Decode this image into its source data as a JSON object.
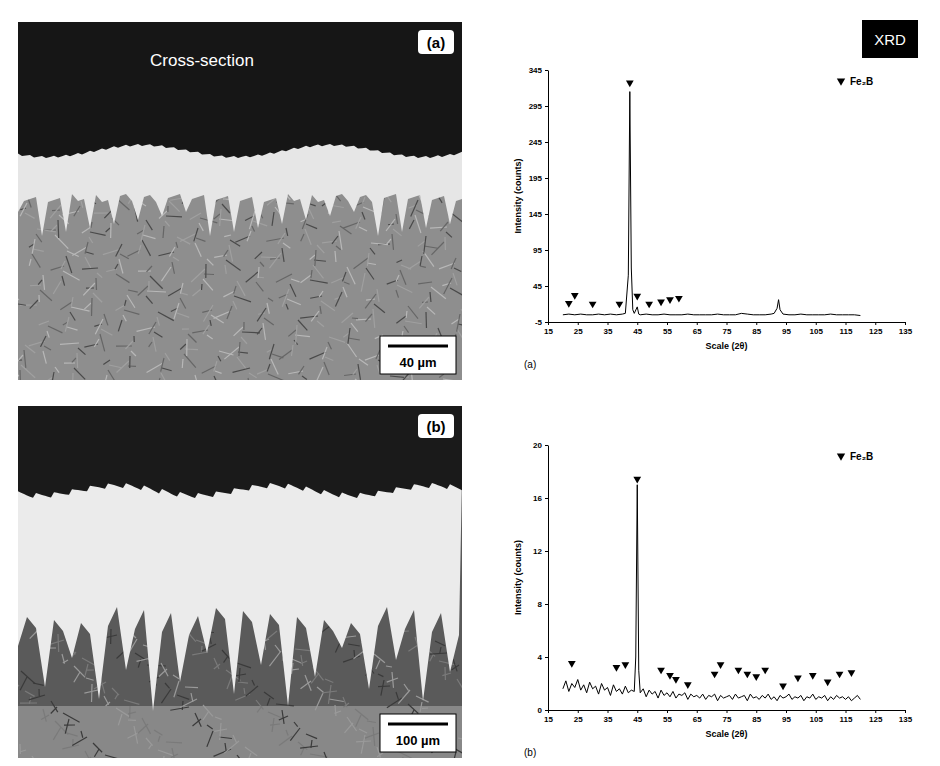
{
  "header": {
    "left_title": "Cross-section",
    "right_title": "XRD"
  },
  "micrographs": [
    {
      "label": "(a)",
      "scale_bar": "40 µm"
    },
    {
      "label": "(b)",
      "scale_bar": "100 µm"
    }
  ],
  "chart_data": [
    {
      "type": "line",
      "panel_label": "(a)",
      "x_label": "Scale (2θ)",
      "y_label": "Intensity (counts)",
      "xlim": [
        15,
        135
      ],
      "xticks": [
        15,
        25,
        35,
        45,
        55,
        65,
        75,
        85,
        95,
        105,
        115,
        125,
        135
      ],
      "ylim": [
        -5,
        345
      ],
      "yticks": [
        -5,
        45,
        95,
        145,
        195,
        245,
        295,
        345
      ],
      "legend": "top-right",
      "x": [
        20,
        22,
        24,
        26,
        28,
        30,
        32,
        34,
        36,
        38,
        40,
        41,
        42,
        42.5,
        43,
        43.5,
        44,
        45,
        45.5,
        46,
        48,
        50,
        52,
        54,
        56,
        58,
        60,
        62,
        64,
        66,
        68,
        70,
        72,
        74,
        76,
        78,
        80,
        82,
        84,
        86,
        88,
        90,
        91,
        92,
        92.5,
        93,
        94,
        96,
        98,
        100,
        102,
        104,
        106,
        108,
        110,
        112,
        114,
        116,
        118,
        120
      ],
      "series": [
        {
          "color": "#000000",
          "line_style": "solid",
          "values": [
            5,
            6,
            5,
            6,
            5,
            5,
            6,
            5,
            6,
            5,
            6,
            7,
            60,
            315,
            70,
            12,
            7,
            16,
            6,
            5,
            6,
            5,
            5,
            6,
            5,
            5,
            5,
            6,
            5,
            5,
            5,
            5,
            6,
            5,
            5,
            5,
            7,
            6,
            5,
            5,
            5,
            6,
            7,
            14,
            26,
            12,
            6,
            5,
            5,
            6,
            5,
            5,
            5,
            5,
            6,
            5,
            5,
            5,
            5,
            4
          ]
        },
        {
          "name": "Fe₂B",
          "type": "scatter",
          "marker": "triangle-down",
          "color": "#000000",
          "x": [
            22,
            24,
            30,
            39,
            42.5,
            45,
            49,
            53,
            56,
            59
          ],
          "values": [
            17,
            28,
            16,
            16,
            323,
            27,
            16,
            19,
            22,
            24
          ]
        }
      ]
    },
    {
      "type": "line",
      "panel_label": "(b)",
      "x_label": "Scale (2θ)",
      "y_label": "Intensity (counts)",
      "xlim": [
        15,
        135
      ],
      "xticks": [
        15,
        25,
        35,
        45,
        55,
        65,
        75,
        85,
        95,
        105,
        115,
        125,
        135
      ],
      "ylim": [
        0,
        20
      ],
      "yticks": [
        0,
        4,
        8,
        12,
        16,
        20
      ],
      "legend": "top-right",
      "x": [
        20,
        21,
        22,
        23,
        24,
        25,
        26,
        27,
        28,
        29,
        30,
        31,
        32,
        33,
        34,
        35,
        36,
        37,
        38,
        39,
        40,
        41,
        42,
        43,
        44,
        44.5,
        45,
        45.5,
        46,
        47,
        48,
        49,
        50,
        51,
        52,
        53,
        54,
        55,
        56,
        57,
        58,
        59,
        60,
        61,
        62,
        63,
        64,
        65,
        66,
        67,
        68,
        69,
        70,
        71,
        72,
        73,
        74,
        75,
        76,
        77,
        78,
        79,
        80,
        81,
        82,
        83,
        84,
        85,
        86,
        87,
        88,
        89,
        90,
        91,
        92,
        93,
        94,
        95,
        96,
        97,
        98,
        99,
        100,
        101,
        102,
        103,
        104,
        105,
        106,
        107,
        108,
        109,
        110,
        111,
        112,
        113,
        114,
        115,
        116,
        117,
        118,
        119,
        120
      ],
      "series": [
        {
          "color": "#000000",
          "line_style": "solid",
          "values": [
            1.6,
            2.2,
            1.4,
            2.0,
            1.7,
            2.3,
            1.5,
            1.9,
            1.3,
            2.1,
            1.6,
            1.8,
            1.2,
            2.0,
            1.5,
            1.7,
            1.1,
            1.9,
            1.4,
            1.6,
            1.2,
            1.8,
            1.3,
            1.5,
            1.4,
            4,
            17,
            3,
            1.3,
            1.6,
            1.0,
            1.5,
            1.2,
            1.4,
            0.9,
            1.5,
            1.1,
            1.3,
            1.0,
            1.4,
            0.9,
            1.2,
            1.1,
            1.3,
            0.8,
            1.2,
            1.0,
            1.1,
            0.9,
            1.2,
            0.8,
            1.1,
            1.0,
            1.2,
            0.7,
            1.1,
            0.9,
            1.0,
            1.1,
            0.8,
            1.2,
            0.9,
            1.0,
            1.1,
            0.7,
            1.2,
            0.9,
            1.0,
            0.8,
            1.1,
            0.9,
            1.2,
            0.8,
            1.0,
            0.7,
            1.1,
            0.9,
            1.0,
            1.2,
            0.8,
            1.0,
            0.9,
            1.1,
            0.7,
            1.0,
            0.9,
            1.2,
            0.8,
            1.0,
            0.9,
            1.1,
            0.7,
            1.0,
            0.8,
            1.1,
            0.9,
            1.0,
            0.8,
            1.0,
            0.7,
            0.9,
            1.1,
            0.8
          ]
        },
        {
          "name": "Fe₂B",
          "type": "scatter",
          "marker": "triangle-down",
          "color": "#000000",
          "x": [
            23,
            38,
            41,
            45,
            53,
            56,
            58,
            62,
            71,
            73,
            79,
            82,
            85,
            88,
            94,
            99,
            104,
            109,
            113,
            117
          ],
          "values": [
            3.3,
            3.0,
            3.2,
            17.2,
            2.8,
            2.4,
            2.1,
            1.7,
            2.5,
            3.2,
            2.8,
            2.5,
            2.3,
            2.8,
            1.6,
            2.2,
            2.4,
            1.9,
            2.5,
            2.6
          ]
        }
      ]
    }
  ]
}
